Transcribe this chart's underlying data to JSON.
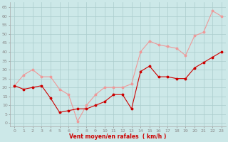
{
  "x": [
    0,
    1,
    2,
    3,
    4,
    5,
    6,
    7,
    8,
    9,
    10,
    11,
    12,
    13,
    14,
    15,
    16,
    17,
    18,
    19,
    20,
    21,
    22,
    23
  ],
  "wind_avg": [
    21,
    19,
    20,
    21,
    14,
    6,
    7,
    8,
    8,
    10,
    12,
    16,
    16,
    8,
    29,
    32,
    26,
    26,
    25,
    25,
    31,
    34,
    37,
    40
  ],
  "wind_gust": [
    21,
    27,
    30,
    26,
    26,
    19,
    16,
    1,
    10,
    16,
    20,
    20,
    20,
    22,
    40,
    46,
    44,
    43,
    42,
    38,
    49,
    51,
    63,
    60
  ],
  "bg_color": "#cce8e8",
  "grid_color": "#aacccc",
  "avg_color": "#cc0000",
  "gust_color": "#ee9999",
  "xlabel": "Vent moyen/en rafales  ( km/h )",
  "xlabel_color": "#cc0000",
  "yticks": [
    0,
    5,
    10,
    15,
    20,
    25,
    30,
    35,
    40,
    45,
    50,
    55,
    60,
    65
  ],
  "ylim": [
    -2,
    68
  ],
  "xlim": [
    -0.5,
    23.5
  ]
}
